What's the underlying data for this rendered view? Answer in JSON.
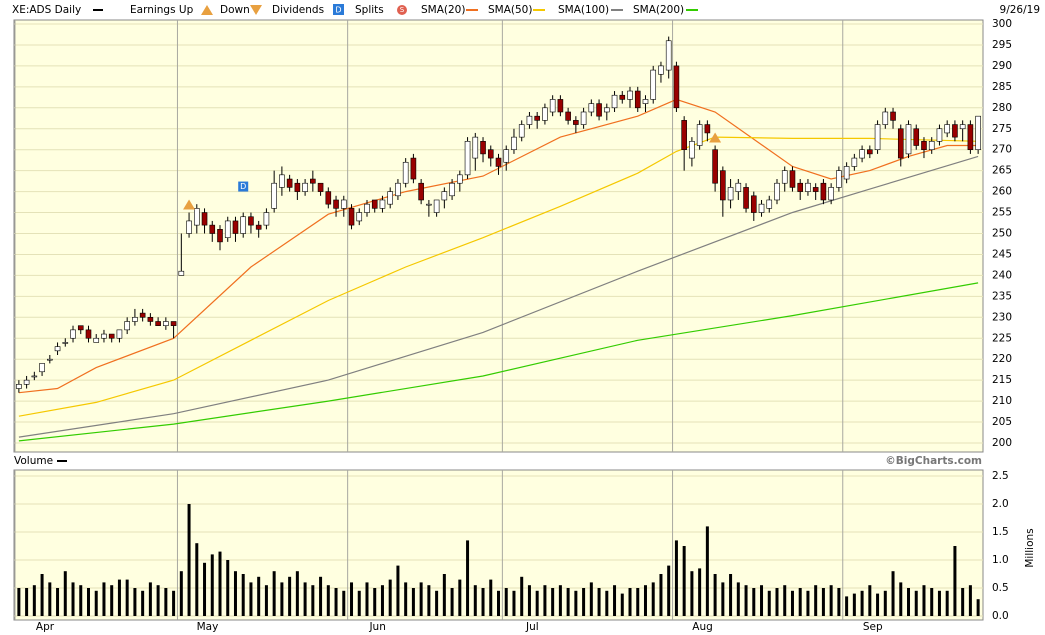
{
  "chart_data": {
    "type": "candlestick",
    "title": "XE:ADS Daily",
    "date": "9/26/19",
    "earnings_label": "Earnings Up",
    "down_label": "Down",
    "dividends_label": "Dividends",
    "splits_label": "Splits",
    "dividend_icon": "D",
    "split_icon": "S",
    "credit": "©BigCharts.com",
    "up_color": "#ffffff",
    "down_color": "#990000",
    "earnings_color": "#e8a040",
    "dividend_color": "#2a7ad8",
    "split_color": "#e06050",
    "grid": true,
    "xlim": [
      -0.5,
      124.5
    ],
    "xticks": [
      {
        "value": 0,
        "label": "Apr"
      },
      {
        "value": 21,
        "label": "May"
      },
      {
        "value": 43,
        "label": "Jun"
      },
      {
        "value": 63,
        "label": "Jul"
      },
      {
        "value": 85,
        "label": "Aug"
      },
      {
        "value": 107,
        "label": "Sep"
      }
    ],
    "ylim": [
      200,
      300
    ],
    "yticks": [
      200,
      205,
      210,
      215,
      220,
      225,
      230,
      235,
      240,
      245,
      250,
      255,
      260,
      265,
      270,
      275,
      280,
      285,
      290,
      295,
      300
    ],
    "earnings_days": [
      22,
      90
    ],
    "dividend_days": [
      29
    ],
    "open": [
      213,
      214,
      216,
      217,
      220,
      222,
      224,
      225,
      228,
      227,
      224,
      225,
      226,
      225,
      227,
      229,
      231,
      230,
      229,
      228,
      229,
      240,
      250,
      252,
      255,
      252,
      251,
      249,
      253,
      250,
      254,
      252,
      252,
      256,
      261,
      263,
      262,
      260,
      263,
      262,
      260,
      258,
      256,
      256,
      253,
      255,
      258,
      256,
      257,
      259,
      262,
      268,
      262,
      257,
      255,
      258,
      259,
      262,
      264,
      268,
      272,
      270,
      268,
      267,
      270,
      273,
      276,
      278,
      277,
      279,
      282,
      279,
      277,
      276,
      279,
      281,
      279,
      280,
      283,
      282,
      284,
      281,
      282,
      288,
      289,
      290,
      277,
      268,
      271,
      276,
      270,
      265,
      258,
      260,
      261,
      259,
      255,
      256,
      258,
      262,
      265,
      262,
      260,
      261,
      262,
      258,
      261,
      263,
      266,
      268,
      270,
      270,
      276,
      279,
      275,
      269,
      275,
      272,
      270,
      272,
      274,
      276,
      275,
      276,
      270
    ],
    "high": [
      215,
      216,
      217,
      219,
      221,
      224,
      225,
      228,
      228,
      228,
      226,
      227,
      226,
      227,
      230,
      232,
      232,
      231,
      230,
      230,
      229,
      250,
      255,
      257,
      256,
      253,
      252,
      254,
      254,
      255,
      255,
      253,
      256,
      265,
      266,
      264,
      263,
      263,
      265,
      262,
      261,
      259,
      259,
      257,
      256,
      258,
      258,
      259,
      261,
      263,
      268,
      269,
      263,
      258,
      258,
      261,
      263,
      265,
      273,
      274,
      273,
      271,
      269,
      271,
      275,
      277,
      279,
      279,
      281,
      283,
      283,
      280,
      278,
      280,
      282,
      282,
      281,
      284,
      284,
      285,
      285,
      283,
      290,
      291,
      297,
      291,
      278,
      273,
      277,
      277,
      271,
      266,
      263,
      263,
      262,
      260,
      258,
      259,
      263,
      266,
      266,
      263,
      263,
      262,
      263,
      262,
      266,
      267,
      269,
      271,
      271,
      277,
      280,
      280,
      276,
      277,
      276,
      273,
      273,
      276,
      277,
      277,
      277,
      277,
      278
    ],
    "low": [
      212,
      213,
      215,
      216,
      219,
      221,
      223,
      224,
      226,
      224,
      224,
      224,
      224,
      224,
      226,
      228,
      229,
      228,
      228,
      227,
      225,
      240,
      249,
      250,
      250,
      248,
      246,
      248,
      248,
      249,
      250,
      249,
      251,
      255,
      259,
      260,
      258,
      259,
      260,
      259,
      256,
      254,
      254,
      251,
      252,
      254,
      255,
      255,
      256,
      258,
      261,
      262,
      257,
      254,
      254,
      256,
      258,
      260,
      263,
      265,
      267,
      266,
      264,
      265,
      269,
      272,
      275,
      275,
      276,
      278,
      278,
      276,
      274,
      275,
      278,
      277,
      277,
      279,
      281,
      280,
      279,
      279,
      281,
      286,
      287,
      279,
      265,
      266,
      270,
      272,
      260,
      254,
      256,
      258,
      255,
      253,
      254,
      255,
      257,
      260,
      260,
      258,
      259,
      258,
      257,
      257,
      260,
      262,
      265,
      267,
      268,
      269,
      275,
      275,
      266,
      268,
      270,
      268,
      269,
      271,
      273,
      272,
      272,
      269,
      269
    ],
    "close": [
      214,
      215,
      216,
      219,
      220,
      223,
      224,
      227,
      227,
      225,
      225,
      226,
      225,
      227,
      229,
      230,
      230,
      229,
      228,
      229,
      228,
      241,
      253,
      256,
      252,
      250,
      248,
      253,
      250,
      254,
      252,
      251,
      255,
      262,
      264,
      261,
      260,
      262,
      262,
      260,
      257,
      256,
      258,
      252,
      255,
      257,
      256,
      258,
      260,
      262,
      267,
      263,
      258,
      257,
      258,
      260,
      262,
      264,
      272,
      273,
      269,
      268,
      266,
      270,
      273,
      276,
      278,
      277,
      280,
      282,
      279,
      277,
      276,
      279,
      281,
      278,
      280,
      283,
      282,
      284,
      280,
      282,
      289,
      290,
      296,
      280,
      270,
      272,
      276,
      274,
      262,
      258,
      261,
      262,
      256,
      255,
      257,
      258,
      262,
      265,
      261,
      260,
      262,
      260,
      258,
      261,
      265,
      266,
      268,
      270,
      269,
      276,
      279,
      277,
      268,
      276,
      271,
      270,
      272,
      275,
      276,
      273,
      276,
      270,
      278
    ],
    "overlays": [
      {
        "name": "SMA(20)",
        "color": "#f07020",
        "x": [
          0,
          5,
          10,
          20,
          30,
          40,
          50,
          60,
          70,
          80,
          85,
          90,
          100,
          105,
          110,
          115,
          120,
          124
        ],
        "values": [
          212,
          213,
          218,
          225,
          242,
          254.6,
          260,
          263.7,
          273,
          278,
          282,
          279,
          266,
          263,
          265,
          268.4,
          271,
          271
        ]
      },
      {
        "name": "SMA(50)",
        "color": "#f5c800",
        "x": [
          0,
          10,
          20,
          30,
          40,
          50,
          60,
          70,
          80,
          85,
          90,
          100,
          110,
          124
        ],
        "values": [
          206.4,
          209.7,
          215,
          224.5,
          234,
          242,
          249,
          256.5,
          264.4,
          269.6,
          273,
          272.7,
          272.7,
          272
        ]
      },
      {
        "name": "SMA(100)",
        "color": "#808080",
        "x": [
          0,
          20,
          40,
          60,
          80,
          100,
          110,
          124
        ],
        "values": [
          201.4,
          207,
          215,
          226.4,
          241,
          255,
          260.6,
          268.4
        ]
      },
      {
        "name": "SMA(200)",
        "color": "#33cc00",
        "x": [
          0,
          20,
          40,
          60,
          80,
          100,
          124
        ],
        "values": [
          200.5,
          204.5,
          210,
          216,
          224.5,
          230.4,
          238.2
        ]
      }
    ],
    "volume": {
      "label": "Volume",
      "unit": "Millions",
      "color": "#000000",
      "ylim": [
        0,
        2.5
      ],
      "yticks": [
        {
          "value": 0,
          "label": "0.0"
        },
        0.5,
        {
          "value": 1,
          "label": "1.0"
        },
        1.5,
        {
          "value": 2,
          "label": "2.0"
        },
        2.5
      ],
      "values": [
        0.5,
        0.5,
        0.55,
        0.75,
        0.6,
        0.5,
        0.8,
        0.6,
        0.55,
        0.5,
        0.45,
        0.6,
        0.55,
        0.65,
        0.65,
        0.5,
        0.45,
        0.6,
        0.55,
        0.5,
        0.45,
        0.8,
        2.0,
        1.3,
        0.95,
        1.1,
        1.15,
        1.0,
        0.8,
        0.75,
        0.6,
        0.7,
        0.55,
        0.8,
        0.6,
        0.7,
        0.8,
        0.6,
        0.55,
        0.7,
        0.55,
        0.5,
        0.45,
        0.6,
        0.45,
        0.6,
        0.5,
        0.55,
        0.65,
        0.9,
        0.6,
        0.5,
        0.6,
        0.55,
        0.45,
        0.75,
        0.5,
        0.65,
        1.35,
        0.55,
        0.5,
        0.65,
        0.45,
        0.5,
        0.45,
        0.7,
        0.55,
        0.45,
        0.55,
        0.5,
        0.55,
        0.5,
        0.45,
        0.5,
        0.6,
        0.5,
        0.45,
        0.55,
        0.4,
        0.5,
        0.5,
        0.55,
        0.6,
        0.75,
        0.9,
        1.35,
        1.25,
        0.8,
        0.85,
        1.6,
        0.75,
        0.6,
        0.75,
        0.6,
        0.55,
        0.5,
        0.55,
        0.45,
        0.5,
        0.55,
        0.45,
        0.5,
        0.45,
        0.55,
        0.5,
        0.55,
        0.5,
        0.35,
        0.4,
        0.45,
        0.55,
        0.4,
        0.45,
        0.8,
        0.6,
        0.5,
        0.45,
        0.55,
        0.5,
        0.45,
        0.45,
        1.25,
        0.5,
        0.55,
        0.3
      ]
    }
  }
}
